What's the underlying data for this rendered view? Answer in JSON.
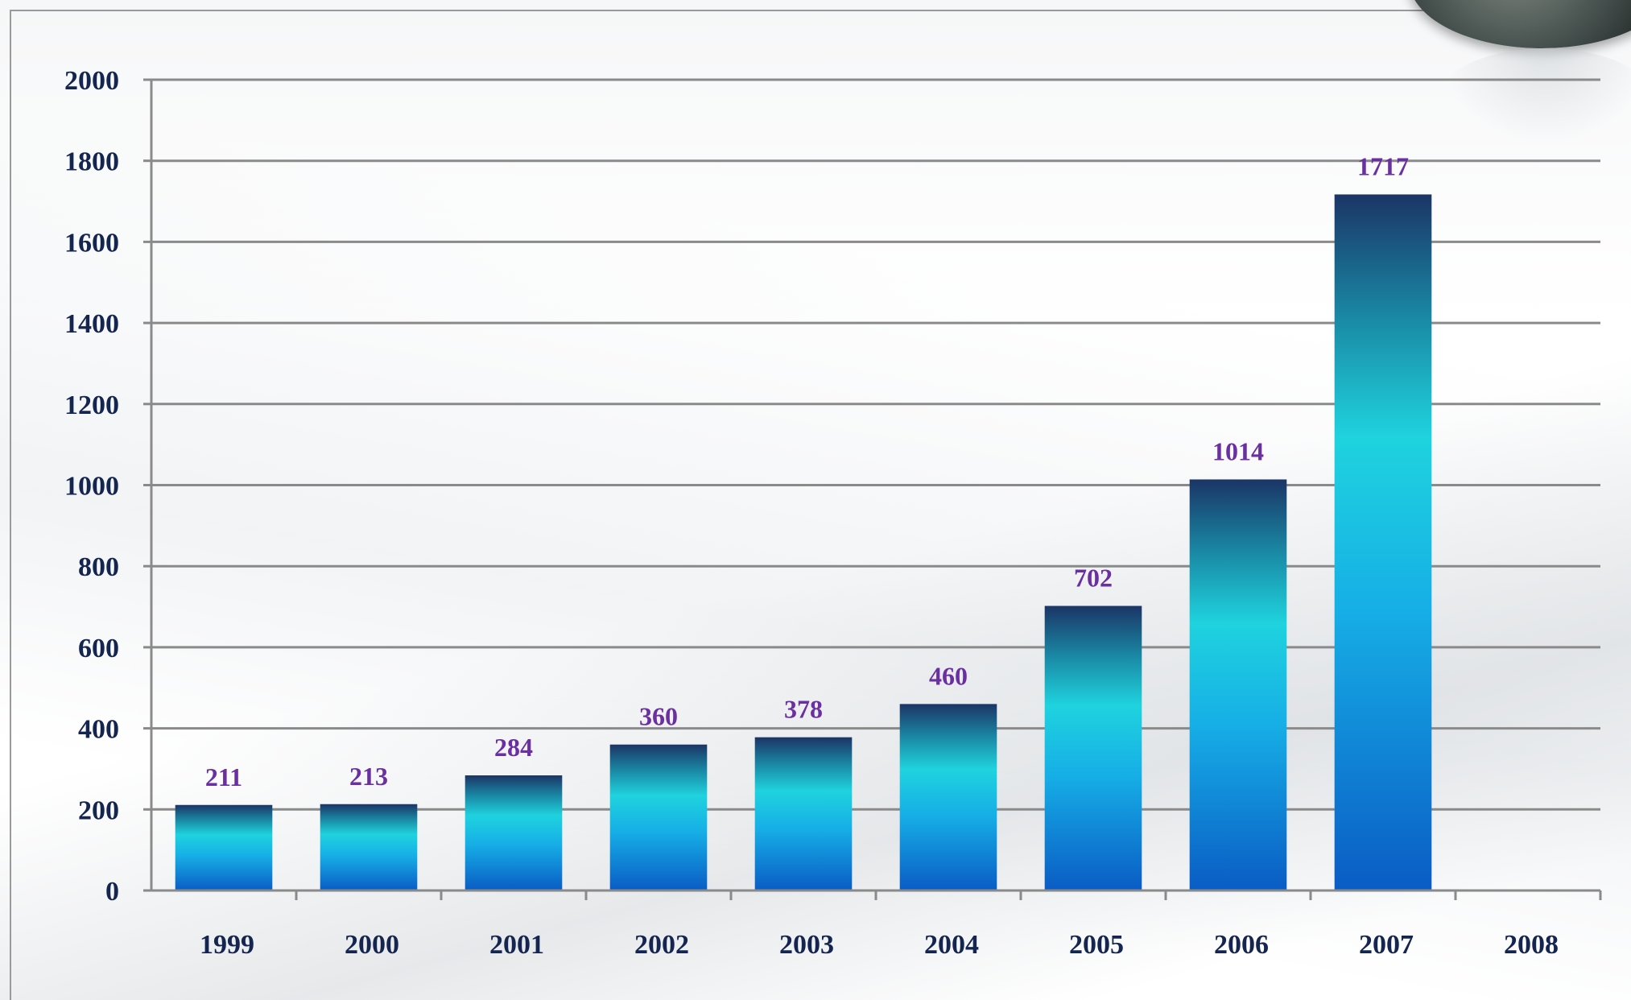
{
  "chart_data": {
    "type": "bar",
    "categories": [
      "1999",
      "2000",
      "2001",
      "2002",
      "2003",
      "2004",
      "2005",
      "2006",
      "2007",
      "2008"
    ],
    "values": [
      211,
      213,
      284,
      360,
      378,
      460,
      702,
      1014,
      1717,
      null
    ],
    "data_labels": [
      "211",
      "213",
      "284",
      "360",
      "378",
      "460",
      "702",
      "1014",
      "1717",
      ""
    ],
    "y_ticks": [
      "0",
      "200",
      "400",
      "600",
      "800",
      "1000",
      "1200",
      "1400",
      "1600",
      "1800",
      "2000"
    ],
    "ylim": [
      0,
      2000
    ],
    "grid": true,
    "title": "",
    "xlabel": "",
    "ylabel": "",
    "colors": {
      "bar_top": "#1b3566",
      "bar_mid": "#1fd3de",
      "bar_bottom": "#0a63c9",
      "gridline": "#8a8a8a",
      "axis_text": "#14254f",
      "data_label": "#6a2fa0"
    }
  }
}
